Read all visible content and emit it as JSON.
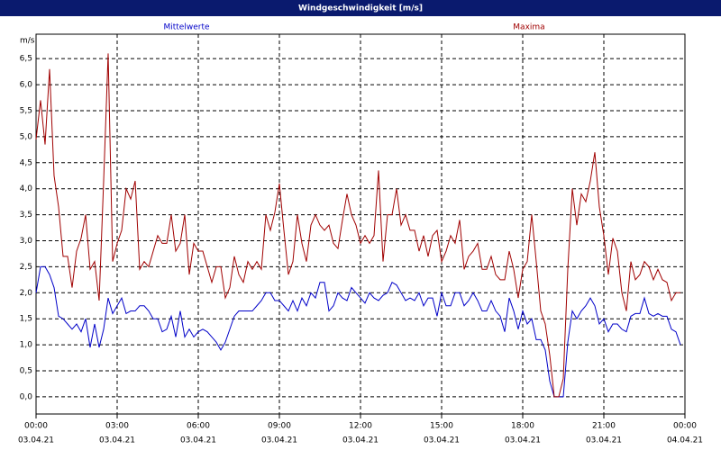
{
  "chart_data": {
    "type": "line",
    "title": "Windgeschwindigkeit [m/s]",
    "y_label": "m/s",
    "grid": true,
    "xlim": [
      0,
      1440
    ],
    "ylim": [
      -0.33,
      6.97
    ],
    "xticks": [
      {
        "value": 0,
        "label": "00:00",
        "date": "03.04.21"
      },
      {
        "value": 180,
        "label": "03:00",
        "date": "03.04.21"
      },
      {
        "value": 360,
        "label": "06:00",
        "date": "03.04.21"
      },
      {
        "value": 540,
        "label": "09:00",
        "date": "03.04.21"
      },
      {
        "value": 720,
        "label": "12:00",
        "date": "03.04.21"
      },
      {
        "value": 900,
        "label": "15:00",
        "date": "03.04.21"
      },
      {
        "value": 1080,
        "label": "18:00",
        "date": "03.04.21"
      },
      {
        "value": 1260,
        "label": "21:00",
        "date": "03.04.21"
      },
      {
        "value": 1440,
        "label": "00:00",
        "date": "04.04.21"
      }
    ],
    "yticks": [
      {
        "value": 0,
        "label": "0,0"
      },
      {
        "value": 0.5,
        "label": "0,5"
      },
      {
        "value": 1,
        "label": "1,0"
      },
      {
        "value": 1.5,
        "label": "1,5"
      },
      {
        "value": 2,
        "label": "2,0"
      },
      {
        "value": 2.5,
        "label": "2,5"
      },
      {
        "value": 3,
        "label": "3,0"
      },
      {
        "value": 3.5,
        "label": "3,5"
      },
      {
        "value": 4,
        "label": "4,0"
      },
      {
        "value": 4.5,
        "label": "4,5"
      },
      {
        "value": 5,
        "label": "5,0"
      },
      {
        "value": 5.5,
        "label": "5,5"
      },
      {
        "value": 6,
        "label": "6,0"
      },
      {
        "value": 6.5,
        "label": "6,5"
      }
    ],
    "x": [
      0,
      10,
      20,
      30,
      40,
      50,
      60,
      70,
      80,
      90,
      100,
      110,
      120,
      130,
      140,
      150,
      160,
      170,
      180,
      190,
      200,
      210,
      220,
      230,
      240,
      250,
      260,
      270,
      280,
      290,
      300,
      310,
      320,
      330,
      340,
      350,
      360,
      370,
      380,
      390,
      400,
      410,
      420,
      430,
      440,
      450,
      460,
      470,
      480,
      490,
      500,
      510,
      520,
      530,
      540,
      550,
      560,
      570,
      580,
      590,
      600,
      610,
      620,
      630,
      640,
      650,
      660,
      670,
      680,
      690,
      700,
      710,
      720,
      730,
      740,
      750,
      760,
      770,
      780,
      790,
      800,
      810,
      820,
      830,
      840,
      850,
      860,
      870,
      880,
      890,
      900,
      910,
      920,
      930,
      940,
      950,
      960,
      970,
      980,
      990,
      1000,
      1010,
      1020,
      1030,
      1040,
      1050,
      1060,
      1070,
      1080,
      1090,
      1100,
      1110,
      1120,
      1130,
      1140,
      1150,
      1160,
      1170,
      1180,
      1190,
      1200,
      1210,
      1220,
      1230,
      1240,
      1250,
      1260,
      1270,
      1280,
      1290,
      1300,
      1310,
      1320,
      1330,
      1340,
      1350,
      1360,
      1370,
      1380,
      1390,
      1400,
      1410,
      1420,
      1430
    ],
    "series": [
      {
        "name": "Mittelwerte",
        "color": "#0000c8",
        "values": [
          2.0,
          2.5,
          2.5,
          2.35,
          2.1,
          1.55,
          1.5,
          1.4,
          1.3,
          1.4,
          1.25,
          1.5,
          0.95,
          1.4,
          0.95,
          1.3,
          1.9,
          1.6,
          1.75,
          1.9,
          1.6,
          1.65,
          1.65,
          1.75,
          1.75,
          1.65,
          1.5,
          1.5,
          1.25,
          1.3,
          1.55,
          1.15,
          1.65,
          1.15,
          1.3,
          1.15,
          1.25,
          1.3,
          1.25,
          1.15,
          1.05,
          0.9,
          1.05,
          1.3,
          1.55,
          1.65,
          1.65,
          1.65,
          1.65,
          1.75,
          1.85,
          2.0,
          2.0,
          1.85,
          1.85,
          1.75,
          1.65,
          1.85,
          1.65,
          1.9,
          1.75,
          2.0,
          1.9,
          2.2,
          2.2,
          1.65,
          1.75,
          2.0,
          1.9,
          1.85,
          2.1,
          2.0,
          1.9,
          1.8,
          2.0,
          1.9,
          1.85,
          1.95,
          2.0,
          2.2,
          2.15,
          2.0,
          1.85,
          1.9,
          1.85,
          2.0,
          1.75,
          1.9,
          1.9,
          1.55,
          2.0,
          1.75,
          1.75,
          2.0,
          2.0,
          1.75,
          1.85,
          2.0,
          1.85,
          1.65,
          1.65,
          1.85,
          1.65,
          1.55,
          1.25,
          1.9,
          1.65,
          1.3,
          1.65,
          1.4,
          1.5,
          1.1,
          1.1,
          0.9,
          0.3,
          0.0,
          0.0,
          0.0,
          1.05,
          1.65,
          1.5,
          1.65,
          1.75,
          1.9,
          1.75,
          1.4,
          1.5,
          1.25,
          1.4,
          1.4,
          1.3,
          1.25,
          1.55,
          1.6,
          1.6,
          1.9,
          1.6,
          1.55,
          1.6,
          1.55,
          1.55,
          1.3,
          1.25,
          1.0
        ]
      },
      {
        "name": "Maxima",
        "color": "#a00000",
        "values": [
          4.95,
          5.7,
          4.85,
          6.3,
          4.25,
          3.65,
          2.7,
          2.7,
          2.1,
          2.8,
          3.05,
          3.5,
          2.45,
          2.6,
          1.85,
          4.15,
          6.6,
          2.6,
          2.95,
          3.2,
          4.0,
          3.8,
          4.15,
          2.45,
          2.6,
          2.5,
          2.8,
          3.1,
          2.95,
          2.95,
          3.5,
          2.8,
          2.95,
          3.5,
          2.35,
          2.95,
          2.8,
          2.8,
          2.5,
          2.2,
          2.5,
          2.5,
          1.9,
          2.1,
          2.7,
          2.35,
          2.2,
          2.6,
          2.45,
          2.6,
          2.45,
          3.5,
          3.2,
          3.55,
          4.1,
          3.2,
          2.35,
          2.6,
          3.5,
          2.95,
          2.6,
          3.3,
          3.5,
          3.3,
          3.2,
          3.3,
          2.95,
          2.85,
          3.4,
          3.9,
          3.5,
          3.3,
          2.95,
          3.1,
          2.95,
          3.1,
          4.35,
          2.6,
          3.5,
          3.5,
          4.0,
          3.3,
          3.5,
          3.2,
          3.2,
          2.8,
          3.1,
          2.7,
          3.1,
          3.2,
          2.6,
          2.8,
          3.1,
          2.95,
          3.4,
          2.45,
          2.7,
          2.8,
          2.95,
          2.45,
          2.45,
          2.7,
          2.35,
          2.25,
          2.25,
          2.8,
          2.45,
          1.9,
          2.45,
          2.6,
          3.5,
          2.6,
          1.65,
          1.4,
          0.8,
          0.0,
          0.0,
          0.35,
          2.45,
          4.0,
          3.3,
          3.9,
          3.75,
          4.15,
          4.7,
          3.65,
          3.1,
          2.35,
          3.05,
          2.8,
          2.0,
          1.65,
          2.6,
          2.25,
          2.35,
          2.6,
          2.5,
          2.25,
          2.45,
          2.25,
          2.2,
          1.85,
          2.0,
          2.0
        ]
      }
    ]
  }
}
